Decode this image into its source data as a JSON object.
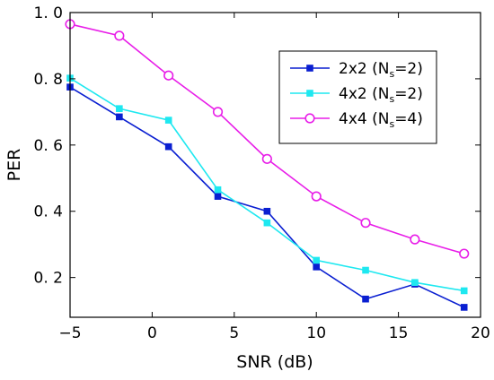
{
  "chart_data": {
    "type": "line",
    "title": "",
    "xlabel": "SNR (dB)",
    "ylabel": "PER",
    "xlim": [
      -5,
      20
    ],
    "ylim": [
      0.08,
      1.0
    ],
    "xticks": [
      -5,
      0,
      5,
      10,
      15,
      20
    ],
    "xtick_labels": [
      "−5",
      "0",
      "5",
      "10",
      "15",
      "20"
    ],
    "yticks": [
      0.2,
      0.4,
      0.6,
      0.8,
      1.0
    ],
    "ytick_labels": [
      "0. 2",
      "0. 4",
      "0. 6",
      "0. 8",
      "1. 0"
    ],
    "grid": false,
    "legend_position": "top-right",
    "x": [
      -5,
      -2,
      1,
      4,
      7,
      10,
      13,
      16,
      19
    ],
    "series": [
      {
        "name": "2x2 (Ns=2)",
        "legend_main": "2x2  (N",
        "legend_sub": "s",
        "legend_tail": "=2)",
        "color": "#0a1fd1",
        "marker": "filled-square",
        "values": [
          0.775,
          0.685,
          0.595,
          0.445,
          0.4,
          0.232,
          0.135,
          0.18,
          0.11
        ]
      },
      {
        "name": "4x2 (Ns=2)",
        "legend_main": "4x2  (N",
        "legend_sub": "s",
        "legend_tail": "=2)",
        "color": "#1ee8f0",
        "marker": "filled-square",
        "values": [
          0.802,
          0.71,
          0.675,
          0.465,
          0.365,
          0.252,
          0.222,
          0.185,
          0.16
        ]
      },
      {
        "name": "4x4 (Ns=4)",
        "legend_main": "4x4  (N",
        "legend_sub": "s",
        "legend_tail": "=4)",
        "color": "#e81ee8",
        "marker": "open-circle",
        "values": [
          0.965,
          0.93,
          0.81,
          0.7,
          0.558,
          0.445,
          0.365,
          0.315,
          0.272
        ]
      }
    ]
  }
}
